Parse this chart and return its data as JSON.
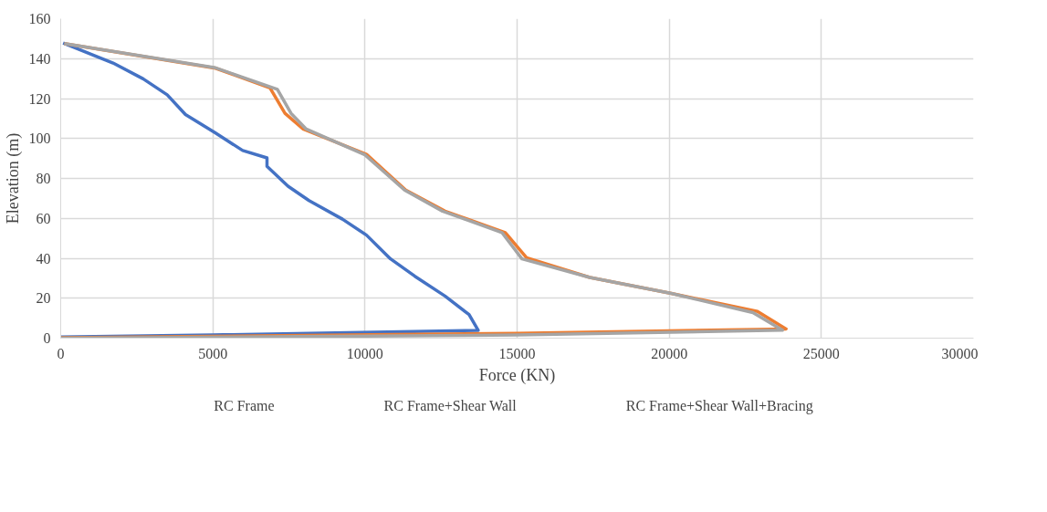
{
  "chart_data": {
    "type": "line",
    "xlabel": "Force (KN)",
    "ylabel": "Elevation (m)",
    "xlim": [
      0,
      30000
    ],
    "xticks": [
      0,
      5000,
      10000,
      15000,
      20000,
      25000,
      30000
    ],
    "ylim": [
      0,
      160
    ],
    "yticks": [
      0,
      20,
      40,
      60,
      80,
      100,
      120,
      140,
      160
    ],
    "grid": true,
    "legend": "bottom",
    "marker": "none",
    "line_style": "solid",
    "series": [
      {
        "name": "RC Frame",
        "color": "#4472c4",
        "x": [
          80,
          1720,
          2710,
          3500,
          4100,
          5090,
          5980,
          6780,
          6780,
          7470,
          8160,
          9260,
          10050,
          10840,
          11640,
          12630,
          13420,
          13720,
          5000,
          0
        ],
        "values": [
          147.8,
          137.8,
          129.9,
          121.9,
          112,
          102.7,
          94,
          90.3,
          86.1,
          76.1,
          68.9,
          59.6,
          51.6,
          39.7,
          31,
          21.1,
          11.8,
          3.9,
          1.6,
          0.6
        ]
      },
      {
        "name": "RC Frame+Shear Wall",
        "color": "#ed7d31",
        "x": [
          120,
          5090,
          6880,
          7370,
          7970,
          10050,
          11340,
          12630,
          14610,
          15310,
          17390,
          20070,
          22900,
          23840,
          15000,
          0
        ],
        "values": [
          147.5,
          135.2,
          125.3,
          112.6,
          104.7,
          92.1,
          74.2,
          63.6,
          52.9,
          40.3,
          30.4,
          22.4,
          13.4,
          4.6,
          2.4,
          0.2
        ]
      },
      {
        "name": "RC Frame+Shear Wall+Bracing",
        "color": "#a5a5a5",
        "x": [
          120,
          5090,
          7120,
          7570,
          8070,
          10000,
          11300,
          12550,
          14500,
          15160,
          17390,
          20070,
          22750,
          23720,
          15000,
          0
        ],
        "values": [
          147.5,
          135.4,
          124.6,
          112.6,
          104.7,
          91.8,
          74.2,
          63.6,
          52.9,
          39.7,
          30.4,
          22.4,
          12.8,
          4,
          1.6,
          0
        ]
      }
    ]
  }
}
